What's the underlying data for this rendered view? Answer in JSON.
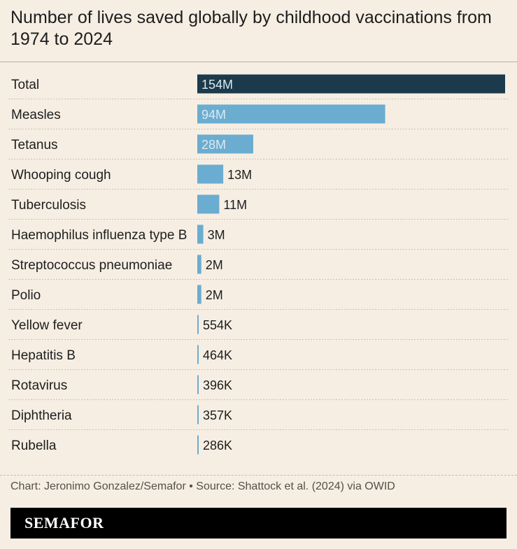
{
  "title": "Number of lives saved globally by childhood vaccinations from 1974 to 2024",
  "source": "Chart: Jeronimo Gonzalez/Semafor • Source: Shattock et al. (2024) via OWID",
  "brand": "SEMAFOR",
  "colors": {
    "background": "#f6eee3",
    "total_bar": "#1b3a4b",
    "bar": "#6badd0",
    "text": "#1d1d1d",
    "label_on_bar": "#dbe9f1"
  },
  "chart_data": {
    "type": "bar",
    "orientation": "horizontal",
    "xlim": [
      0,
      154000000
    ],
    "categories": [
      "Total",
      "Measles",
      "Tetanus",
      "Whooping cough",
      "Tuberculosis",
      "Haemophilus influenza type B",
      "Streptococcus pneumoniae",
      "Polio",
      "Yellow fever",
      "Hepatitis B",
      "Rotavirus",
      "Diphtheria",
      "Rubella"
    ],
    "values": [
      154000000,
      94000000,
      28000000,
      13000000,
      11000000,
      3000000,
      2000000,
      2000000,
      554000,
      464000,
      396000,
      357000,
      286000
    ],
    "value_labels": [
      "154M",
      "94M",
      "28M",
      "13M",
      "11M",
      "3M",
      "2M",
      "2M",
      "554K",
      "464K",
      "396K",
      "357K",
      "286K"
    ],
    "grid": false,
    "legend": "none"
  }
}
